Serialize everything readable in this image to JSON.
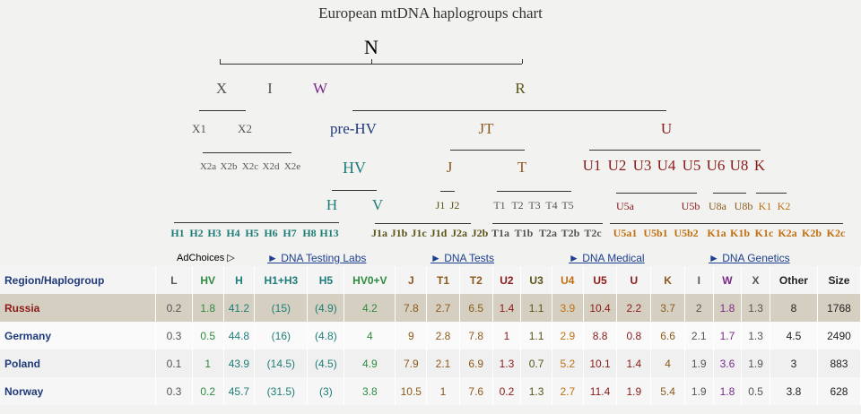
{
  "title": "European mtDNA haplogroups chart",
  "colors": {
    "navy": "#1f3a7a",
    "teal": "#1e7d78",
    "green": "#2e8b3e",
    "olive": "#5a5418",
    "brown": "#8b5a1c",
    "darkred": "#8b1a1a",
    "orange": "#c07010",
    "purple": "#7a2a8a",
    "gray": "#555555"
  },
  "tree": {
    "N": "N",
    "X": "X",
    "I": "I",
    "W": "W",
    "R": "R",
    "X1": "X1",
    "X2": "X2",
    "X2sub": [
      "X2a",
      "X2b",
      "X2c",
      "X2d",
      "X2e"
    ],
    "preHV": "pre-HV",
    "HV": "HV",
    "H": "H",
    "V": "V",
    "Hsub": [
      "H1",
      "H2",
      "H3",
      "H4",
      "H5",
      "H6",
      "H7",
      "H8",
      "H13"
    ],
    "JT": "JT",
    "J": "J",
    "T": "T",
    "J1": "J1",
    "J2": "J2",
    "Tsub": [
      "T1",
      "T2",
      "T3",
      "T4",
      "T5"
    ],
    "Jleaves": [
      "J1a",
      "J1b",
      "J1c",
      "J1d",
      "J2a",
      "J2b"
    ],
    "Tleaves": [
      "T1a",
      "T1b",
      "T2a",
      "T2b",
      "T2c"
    ],
    "U": "U",
    "Usub": [
      "U1",
      "U2",
      "U3",
      "U4",
      "U5",
      "U6",
      "U8",
      "K"
    ],
    "U5a": "U5a",
    "U5b": "U5b",
    "U8a": "U8a",
    "U8b": "U8b",
    "K1": "K1",
    "K2": "K2",
    "Uleaves": [
      "U5a1",
      "U5b1",
      "U5b2",
      "K1a",
      "K1b",
      "K1c",
      "K2a",
      "K2b",
      "K2c"
    ]
  },
  "ads": {
    "adchoices": "AdChoices ▷",
    "links": [
      "► DNA Testing Labs",
      "► DNA Tests",
      "► DNA Medical",
      "► DNA Genetics"
    ]
  },
  "table": {
    "headers": [
      "Region/Haplogroup",
      "L",
      "HV",
      "H",
      "H1+H3",
      "H5",
      "HV0+V",
      "J",
      "T1",
      "T2",
      "U2",
      "U3",
      "U4",
      "U5",
      "U",
      "K",
      "I",
      "W",
      "X",
      "Other",
      "Size"
    ],
    "rows": [
      {
        "region": "Russia",
        "values": [
          "0.2",
          "1.8",
          "41.2",
          "(15)",
          "(4.9)",
          "4.2",
          "7.8",
          "2.7",
          "6.5",
          "1.4",
          "1.1",
          "3.9",
          "10.4",
          "2.2",
          "3.7",
          "2",
          "1.8",
          "1.3",
          "8",
          "1768"
        ]
      },
      {
        "region": "Germany",
        "values": [
          "0.3",
          "0.5",
          "44.8",
          "(16)",
          "(4.8)",
          "4",
          "9",
          "2.8",
          "7.8",
          "1",
          "1.1",
          "2.9",
          "8.8",
          "0.8",
          "6.6",
          "2.1",
          "1.7",
          "1.3",
          "4.5",
          "2490"
        ]
      },
      {
        "region": "Poland",
        "values": [
          "0.1",
          "1",
          "43.9",
          "(14.5)",
          "(4.5)",
          "4.9",
          "7.9",
          "2.1",
          "6.9",
          "1.3",
          "0.7",
          "5.2",
          "10.1",
          "1.4",
          "4",
          "1.9",
          "3.6",
          "1.9",
          "3",
          "883"
        ]
      },
      {
        "region": "Norway",
        "values": [
          "0.3",
          "0.2",
          "45.7",
          "(31.5)",
          "(3)",
          "3.8",
          "10.5",
          "1",
          "7.6",
          "0.2",
          "1.3",
          "2.7",
          "11.4",
          "1.9",
          "5.4",
          "1.9",
          "1.8",
          "0.5",
          "3.8",
          "628"
        ]
      }
    ]
  }
}
